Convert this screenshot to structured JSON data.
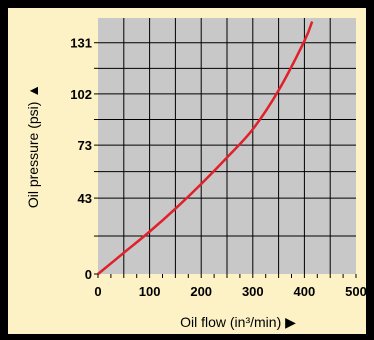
{
  "chart_data": {
    "type": "line",
    "title": "",
    "xlabel": "Oil flow (in³/min) ▶",
    "ylabel": "Oil pressure (psi) ▲",
    "xlim": [
      0,
      500
    ],
    "ylim": [
      0,
      145
    ],
    "xticks": [
      0,
      100,
      200,
      300,
      400,
      500
    ],
    "yticks": [
      0,
      43,
      73,
      102,
      131
    ],
    "xtick_labels": [
      "0",
      "100",
      "200",
      "300",
      "400",
      "500"
    ],
    "ytick_labels": [
      "0",
      "43",
      "73",
      "102",
      "131"
    ],
    "grid": true,
    "colors": {
      "plot_background": "#c8c8c8",
      "line": "#e0202a",
      "panel": "#fcf2c6",
      "frame": "#000000"
    },
    "series": [
      {
        "x": [
          0,
          50,
          100,
          150,
          200,
          250,
          300,
          350,
          400,
          415
        ],
        "y": [
          0,
          12,
          24,
          37,
          51,
          66,
          82,
          104,
          132,
          143
        ]
      }
    ]
  }
}
